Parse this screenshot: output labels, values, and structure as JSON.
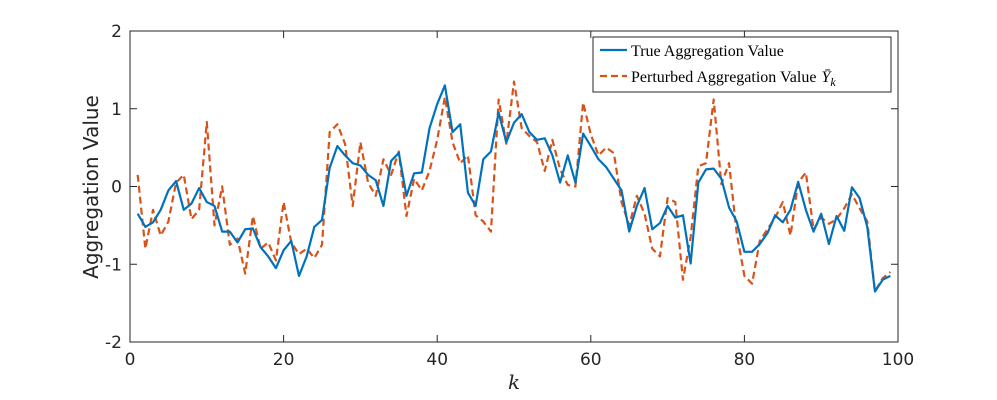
{
  "chart_data": {
    "type": "line",
    "xlabel": "k",
    "ylabel": "Aggregation Value",
    "xlim": [
      0,
      100
    ],
    "ylim": [
      -2,
      2
    ],
    "xticks": [
      0,
      20,
      40,
      60,
      80,
      100
    ],
    "yticks": [
      -2,
      -1,
      0,
      1,
      2
    ],
    "x": [
      1,
      2,
      3,
      4,
      5,
      6,
      7,
      8,
      9,
      10,
      11,
      12,
      13,
      14,
      15,
      16,
      17,
      18,
      19,
      20,
      21,
      22,
      23,
      24,
      25,
      26,
      27,
      28,
      29,
      30,
      31,
      32,
      33,
      34,
      35,
      36,
      37,
      38,
      39,
      40,
      41,
      42,
      43,
      44,
      45,
      46,
      47,
      48,
      49,
      50,
      51,
      52,
      53,
      54,
      55,
      56,
      57,
      58,
      59,
      60,
      61,
      62,
      63,
      64,
      65,
      66,
      67,
      68,
      69,
      70,
      71,
      72,
      73,
      74,
      75,
      76,
      77,
      78,
      79,
      80,
      81,
      82,
      83,
      84,
      85,
      86,
      87,
      88,
      89,
      90,
      91,
      92,
      93,
      94,
      95,
      96,
      97,
      98,
      99
    ],
    "legend": {
      "position": "top-right"
    },
    "series": [
      {
        "name": "True Aggregation Value",
        "color": "#0072BD",
        "style": "solid",
        "values": [
          -0.35,
          -0.52,
          -0.46,
          -0.3,
          -0.05,
          0.07,
          -0.3,
          -0.22,
          -0.02,
          -0.2,
          -0.25,
          -0.58,
          -0.58,
          -0.72,
          -0.55,
          -0.54,
          -0.78,
          -0.9,
          -1.05,
          -0.82,
          -0.7,
          -1.15,
          -0.9,
          -0.52,
          -0.43,
          0.24,
          0.52,
          0.4,
          0.3,
          0.27,
          0.15,
          0.08,
          -0.25,
          0.33,
          0.43,
          -0.12,
          0.17,
          0.18,
          0.75,
          1.06,
          1.3,
          0.7,
          0.8,
          -0.08,
          -0.25,
          0.35,
          0.45,
          0.95,
          0.57,
          0.82,
          0.93,
          0.7,
          0.6,
          0.62,
          0.4,
          0.05,
          0.4,
          0.05,
          0.68,
          0.52,
          0.35,
          0.25,
          0.1,
          -0.05,
          -0.58,
          -0.25,
          -0.02,
          -0.55,
          -0.47,
          -0.25,
          -0.4,
          -0.37,
          -0.99,
          0.05,
          0.22,
          0.23,
          0.1,
          -0.27,
          -0.45,
          -0.84,
          -0.84,
          -0.74,
          -0.6,
          -0.37,
          -0.46,
          -0.3,
          0.06,
          -0.3,
          -0.58,
          -0.35,
          -0.74,
          -0.38,
          -0.57,
          -0.01,
          -0.15,
          -0.52,
          -1.35,
          -1.2,
          -1.15
        ]
      },
      {
        "name": "Perturbed Aggregation Value",
        "legend_math": "Ȳ",
        "legend_sub": "k",
        "color": "#D95319",
        "style": "dashed",
        "values": [
          0.15,
          -0.8,
          -0.3,
          -0.63,
          -0.45,
          0.05,
          0.15,
          -0.42,
          -0.3,
          0.83,
          -0.5,
          0.0,
          -0.75,
          -0.67,
          -1.12,
          -0.38,
          -0.8,
          -0.72,
          -0.95,
          -0.2,
          -0.72,
          -0.87,
          -0.8,
          -0.92,
          -0.75,
          0.7,
          0.8,
          0.55,
          -0.25,
          0.57,
          0.05,
          -0.12,
          0.35,
          0.15,
          0.45,
          -0.38,
          0.1,
          -0.05,
          0.2,
          0.6,
          1.15,
          0.57,
          0.3,
          0.4,
          -0.37,
          -0.45,
          -0.58,
          1.12,
          0.55,
          1.35,
          0.75,
          0.65,
          0.57,
          0.2,
          0.6,
          0.22,
          0.02,
          0.0,
          1.08,
          0.67,
          0.4,
          0.5,
          0.43,
          -0.2,
          -0.5,
          -0.12,
          -0.35,
          -0.8,
          -0.9,
          -0.15,
          -0.2,
          -1.2,
          -0.65,
          0.26,
          0.3,
          1.12,
          0.03,
          0.3,
          -0.6,
          -1.15,
          -1.25,
          -0.7,
          -0.55,
          -0.4,
          -0.2,
          -0.63,
          0.05,
          0.18,
          -0.55,
          -0.4,
          -0.48,
          -0.42,
          -0.28,
          -0.1,
          -0.28,
          -0.45,
          -1.35,
          -1.18,
          -1.1
        ]
      }
    ]
  }
}
